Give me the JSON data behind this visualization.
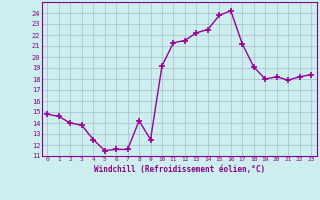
{
  "xlabel": "Windchill (Refroidissement éolien,°C)",
  "x": [
    0,
    1,
    2,
    3,
    4,
    5,
    6,
    7,
    8,
    9,
    10,
    11,
    12,
    13,
    14,
    15,
    16,
    17,
    18,
    19,
    20,
    21,
    22,
    23
  ],
  "y": [
    14.8,
    14.6,
    14.0,
    13.8,
    12.5,
    11.5,
    11.6,
    11.6,
    14.2,
    12.5,
    19.2,
    21.3,
    21.5,
    22.2,
    22.5,
    23.8,
    24.2,
    21.2,
    19.1,
    18.0,
    18.2,
    17.9,
    18.2,
    18.4
  ],
  "line_color": "#990099",
  "marker": "+",
  "bg_color": "#cceeee",
  "grid_color": "#aabbcc",
  "ylim": [
    11,
    25
  ],
  "yticks": [
    11,
    12,
    13,
    14,
    15,
    16,
    17,
    18,
    19,
    20,
    21,
    22,
    23,
    24
  ],
  "tick_color": "#880088",
  "label_color": "#880088",
  "font": "monospace"
}
